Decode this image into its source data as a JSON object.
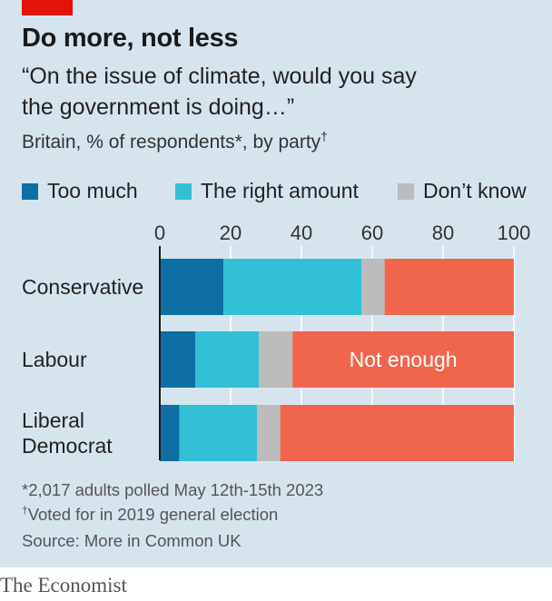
{
  "header": {
    "title": "Do more, not less",
    "subtitle_line1": "“On the issue of climate, would you say",
    "subtitle_line2": "the government is doing…”",
    "subtitle_line3": "Britain, % of respondents*, by party",
    "subtitle_line3_mark": "†"
  },
  "legend": [
    {
      "label": "Too much",
      "color": "#0e6fa4"
    },
    {
      "label": "The right amount",
      "color": "#32c0d6"
    },
    {
      "label": "Don’t know",
      "color": "#bcbcbc"
    }
  ],
  "chart_data": {
    "type": "bar",
    "orientation": "horizontal",
    "stacked": true,
    "categories": [
      "Conservative",
      "Labour",
      "Liberal\nDemocrat"
    ],
    "xlim": [
      0,
      100
    ],
    "xticks": [
      0,
      20,
      40,
      60,
      80,
      100
    ],
    "series": [
      {
        "name": "Too much",
        "color": "#0e6fa4",
        "values": [
          18,
          10,
          5.5
        ]
      },
      {
        "name": "The right amount",
        "color": "#32c0d6",
        "values": [
          39,
          18,
          22
        ]
      },
      {
        "name": "Don’t know",
        "color": "#bcbcbc",
        "values": [
          6.5,
          9.5,
          6.5
        ]
      },
      {
        "name": "Not enough",
        "color": "#f0664c",
        "values": [
          36.5,
          62.5,
          66
        ]
      }
    ],
    "annotations": [
      {
        "text": "Not enough",
        "category": "Labour"
      }
    ],
    "grid": true
  },
  "footnotes": {
    "note1": "*2,017 adults polled May 12th-15th 2023",
    "note2_mark": "†",
    "note2": "Voted for in 2019 general election",
    "source": "Source: More in Common UK"
  },
  "brand": "The Economist"
}
